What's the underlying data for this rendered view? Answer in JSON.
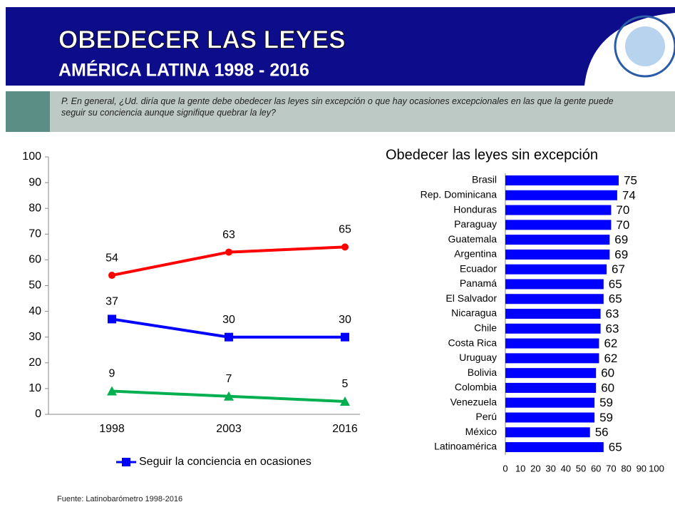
{
  "header": {
    "title": "OBEDECER LAS LEYES",
    "subtitle": "AMÉRICA LATINA 1998 - 2016"
  },
  "question": "P. En general, ¿Ud. diría que la gente debe obedecer las leyes sin excepción o que hay ocasiones excepcionales en las que la gente puede seguir su conciencia aunque signifique quebrar la ley?",
  "chart_data": [
    {
      "type": "line",
      "categories": [
        "1998",
        "2003",
        "2016"
      ],
      "series": [
        {
          "color": "#ff0000",
          "marker": "circle",
          "values": [
            54,
            63,
            65
          ]
        },
        {
          "name": "Seguir la conciencia en ocasiones",
          "color": "#0000ff",
          "marker": "square",
          "values": [
            37,
            30,
            30
          ]
        },
        {
          "color": "#00b050",
          "marker": "triangle",
          "values": [
            9,
            7,
            5
          ]
        }
      ],
      "ylim": [
        0,
        100
      ],
      "yticks": [
        0,
        10,
        20,
        30,
        40,
        50,
        60,
        70,
        80,
        90,
        100
      ],
      "grid": false,
      "legend": "bottom"
    },
    {
      "type": "bar",
      "orientation": "horizontal",
      "title": "Obedecer las leyes sin excepción",
      "categories": [
        "Brasil",
        "Rep. Dominicana",
        "Honduras",
        "Paraguay",
        "Guatemala",
        "Argentina",
        "Ecuador",
        "Panamá",
        "El Salvador",
        "Nicaragua",
        "Chile",
        "Costa Rica",
        "Uruguay",
        "Bolivia",
        "Colombia",
        "Venezuela",
        "Perú",
        "México",
        "Latinoamérica"
      ],
      "values": [
        75,
        74,
        70,
        70,
        69,
        69,
        67,
        65,
        65,
        63,
        63,
        62,
        62,
        60,
        60,
        59,
        59,
        56,
        65
      ],
      "color": "#0000ff",
      "xlim": [
        0,
        100
      ],
      "xticks": [
        0,
        10,
        20,
        30,
        40,
        50,
        60,
        70,
        80,
        90,
        100
      ],
      "grid": false
    }
  ],
  "source": "Fuente: Latinobarómetro 1998-2016"
}
